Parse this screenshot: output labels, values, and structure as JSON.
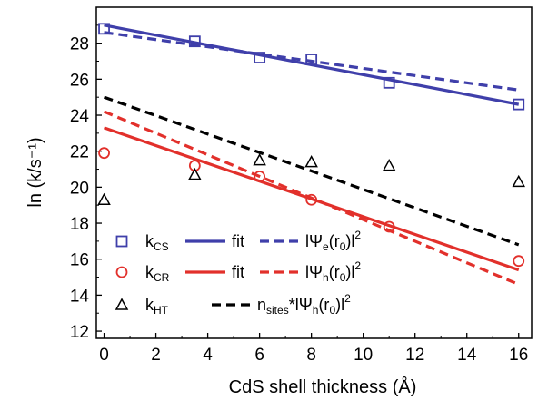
{
  "chart_data": {
    "type": "scatter",
    "xlabel": "CdS shell thickness (Å)",
    "ylabel": "ln (k/s⁻¹)",
    "xlim": [
      -0.3,
      16.5
    ],
    "ylim": [
      11.6,
      30.0
    ],
    "xticks": [
      0,
      2,
      4,
      6,
      8,
      10,
      12,
      14,
      16
    ],
    "yticks": [
      12,
      14,
      16,
      18,
      20,
      22,
      24,
      26,
      28
    ],
    "grid": false,
    "legend_position": "bottom-left",
    "series": [
      {
        "name": "kCS",
        "label_main": "k",
        "label_sub": "CS",
        "kind": "scatter",
        "marker": "square",
        "color": "#3f3faa",
        "x": [
          0,
          3.5,
          6,
          8,
          11,
          16
        ],
        "y": [
          28.8,
          28.1,
          27.2,
          27.1,
          25.8,
          24.6
        ]
      },
      {
        "name": "fit",
        "kind": "line",
        "dash": "solid",
        "color": "#3f3faa",
        "x": [
          0,
          16
        ],
        "y": [
          29.0,
          24.6
        ]
      },
      {
        "name": "|Ψe(r0)|2",
        "kind": "line",
        "dash": "dashed",
        "color": "#3f3faa",
        "x": [
          0,
          16
        ],
        "y": [
          28.6,
          25.4
        ]
      },
      {
        "name": "kCR",
        "label_main": "k",
        "label_sub": "CR",
        "kind": "scatter",
        "marker": "circle",
        "color": "#e2302b",
        "x": [
          0,
          3.5,
          6,
          8,
          11,
          16
        ],
        "y": [
          21.9,
          21.2,
          20.6,
          19.3,
          17.8,
          15.9
        ]
      },
      {
        "name": "fit",
        "kind": "line",
        "dash": "solid",
        "color": "#e2302b",
        "x": [
          0,
          16
        ],
        "y": [
          23.3,
          15.4
        ]
      },
      {
        "name": "|Ψh(r0)|2",
        "kind": "line",
        "dash": "dashed",
        "color": "#e2302b",
        "x": [
          0,
          16
        ],
        "y": [
          24.2,
          14.6
        ]
      },
      {
        "name": "kHT",
        "label_main": "k",
        "label_sub": "HT",
        "kind": "scatter",
        "marker": "triangle",
        "color": "#000000",
        "x": [
          0,
          3.5,
          6,
          8,
          11,
          16
        ],
        "y": [
          19.3,
          20.7,
          21.5,
          21.4,
          21.2,
          20.3
        ]
      },
      {
        "name": "nsites*|Ψh(r0)|2",
        "kind": "line",
        "dash": "dashed",
        "color": "#000000",
        "x": [
          0,
          16
        ],
        "y": [
          25.0,
          16.8
        ]
      }
    ],
    "legend": {
      "rows": [
        {
          "marker_label_main": "k",
          "marker_label_sub": "CS",
          "fit_label": "fit",
          "model_label_prefix": "lΨ",
          "model_label_sub": "e",
          "model_label_suffix": "(r",
          "model_label_sub2": "0",
          "model_label_end": ")l",
          "model_label_sup": "2"
        },
        {
          "marker_label_main": "k",
          "marker_label_sub": "CR",
          "fit_label": "fit",
          "model_label_prefix": "lΨ",
          "model_label_sub": "h",
          "model_label_suffix": "(r",
          "model_label_sub2": "0",
          "model_label_end": ")l",
          "model_label_sup": "2"
        },
        {
          "marker_label_main": "k",
          "marker_label_sub": "HT",
          "model_label_prefix": "n",
          "model_label_sub": "sites",
          "model_label_suffix": "*lΨ",
          "model_label_sub2": "h",
          "model_label_mid": "(r",
          "model_label_sub3": "0",
          "model_label_end": ")l",
          "model_label_sup": "2"
        }
      ]
    }
  }
}
